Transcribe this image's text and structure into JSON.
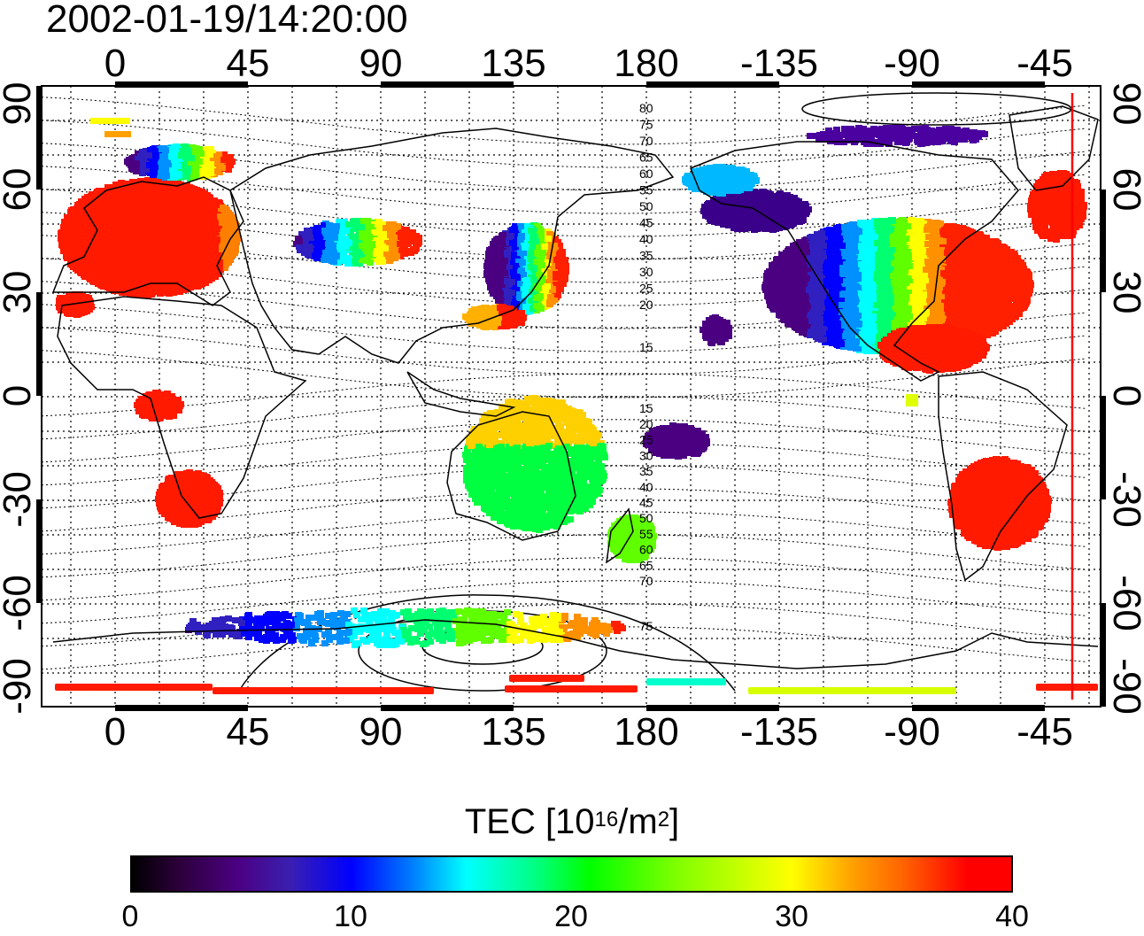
{
  "timestamp": "2002-01-19/14:20:00",
  "lon_ticks_top": [
    "0",
    "45",
    "90",
    "135",
    "180",
    "-135",
    "-90",
    "-45"
  ],
  "lon_ticks_bottom": [
    "0",
    "45",
    "90",
    "135",
    "180",
    "-135",
    "-90",
    "-45"
  ],
  "lat_ticks_left": [
    "90",
    "60",
    "30",
    "0",
    "-30",
    "-60",
    "-90"
  ],
  "lat_ticks_right": [
    "90",
    "60",
    "30",
    "0",
    "-30",
    "-60",
    "-90"
  ],
  "contour_labels_north": [
    "80",
    "75",
    "70",
    "65",
    "60",
    "55",
    "50",
    "45",
    "40",
    "35",
    "30",
    "25",
    "20",
    "15"
  ],
  "contour_labels_south": [
    "15",
    "20",
    "25",
    "30",
    "35",
    "40",
    "45",
    "50",
    "55",
    "60",
    "65",
    "70",
    "75"
  ],
  "colorbar": {
    "title_prefix": "TEC  [10",
    "title_sup1": "16",
    "title_mid": "/m",
    "title_sup2": "2",
    "title_suffix": "]",
    "ticks": [
      "0",
      "10",
      "20",
      "30",
      "40"
    ],
    "min": 0,
    "max": 40
  },
  "colors": {
    "frame": "#000000",
    "terminator": "#ff0000",
    "coast": "#000000"
  }
}
